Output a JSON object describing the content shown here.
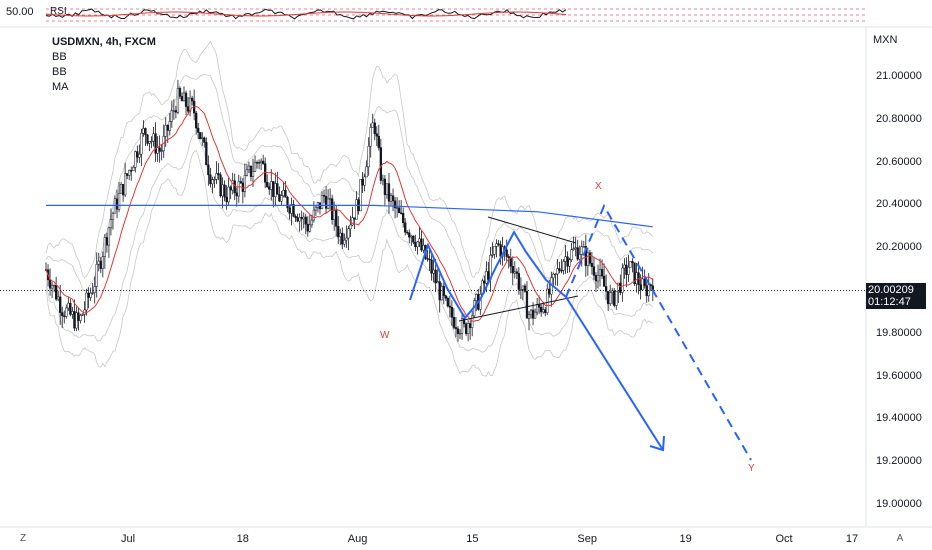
{
  "header": {
    "rsi_value": "50.00",
    "rsi_label": "RSI"
  },
  "legend": {
    "symbol": "USDMXN, 4h, FXCM",
    "indicators": [
      "BB",
      "BB",
      "MA"
    ]
  },
  "price_axis": {
    "unit": "MXN",
    "current_price": "20.00209",
    "countdown": "01:12:47"
  },
  "annotations": {
    "w": "W",
    "x": "X",
    "y": "Y"
  },
  "footer": {
    "left_button": "Z",
    "right_button": "A"
  },
  "colors": {
    "candle": "#131722",
    "ma_red": "#e53935",
    "ma_blue": "#2962ff",
    "bands": "#c8c8c8",
    "projection": "#2962ff",
    "wave_labels": "#e53935"
  },
  "chart_data": {
    "type": "candlestick",
    "y_ticks": [
      "21.00000",
      "20.80000",
      "20.60000",
      "20.40000",
      "20.20000",
      "19.80000",
      "19.60000",
      "19.40000",
      "19.20000",
      "19.00000"
    ],
    "y_tick_values": [
      21.0,
      20.8,
      20.6,
      20.4,
      20.2,
      19.8,
      19.6,
      19.4,
      19.2,
      19.0
    ],
    "x_ticks": [
      "Jul",
      "18",
      "Aug",
      "15",
      "Sep",
      "19",
      "Oct",
      "17"
    ],
    "x_tick_positions": [
      0.1,
      0.24,
      0.38,
      0.52,
      0.66,
      0.78,
      0.9,
      1.02
    ],
    "price_path": [
      [
        0,
        20.1
      ],
      [
        0.02,
        19.92
      ],
      [
        0.04,
        19.85
      ],
      [
        0.06,
        20.05
      ],
      [
        0.08,
        20.35
      ],
      [
        0.1,
        20.55
      ],
      [
        0.12,
        20.75
      ],
      [
        0.14,
        20.65
      ],
      [
        0.16,
        20.9
      ],
      [
        0.18,
        20.85
      ],
      [
        0.2,
        20.55
      ],
      [
        0.22,
        20.45
      ],
      [
        0.24,
        20.5
      ],
      [
        0.26,
        20.62
      ],
      [
        0.28,
        20.45
      ],
      [
        0.3,
        20.4
      ],
      [
        0.32,
        20.3
      ],
      [
        0.34,
        20.45
      ],
      [
        0.36,
        20.25
      ],
      [
        0.38,
        20.4
      ],
      [
        0.4,
        20.8
      ],
      [
        0.41,
        20.5
      ],
      [
        0.43,
        20.35
      ],
      [
        0.45,
        20.25
      ],
      [
        0.47,
        20.1
      ],
      [
        0.49,
        19.9
      ],
      [
        0.51,
        19.82
      ],
      [
        0.53,
        19.98
      ],
      [
        0.55,
        20.22
      ],
      [
        0.57,
        20.12
      ],
      [
        0.59,
        19.88
      ],
      [
        0.61,
        19.95
      ],
      [
        0.63,
        20.15
      ],
      [
        0.65,
        20.2
      ],
      [
        0.67,
        20.1
      ],
      [
        0.69,
        19.95
      ],
      [
        0.71,
        20.12
      ],
      [
        0.73,
        20.0
      ],
      [
        0.74,
        20.05
      ]
    ],
    "ma_blue": [
      [
        0,
        20.4
      ],
      [
        0.2,
        20.4
      ],
      [
        0.4,
        20.4
      ],
      [
        0.6,
        20.37
      ],
      [
        0.74,
        20.3
      ]
    ],
    "current_price": 20.00209
  }
}
